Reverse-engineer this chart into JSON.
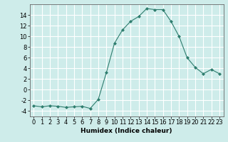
{
  "x": [
    0,
    1,
    2,
    3,
    4,
    5,
    6,
    7,
    8,
    9,
    10,
    11,
    12,
    13,
    14,
    15,
    16,
    17,
    18,
    19,
    20,
    21,
    22,
    23
  ],
  "y": [
    -3,
    -3.2,
    -3,
    -3.1,
    -3.3,
    -3.2,
    -3.1,
    -3.5,
    -1.8,
    3.2,
    8.7,
    11.2,
    12.8,
    13.7,
    15.2,
    15.0,
    15.0,
    12.8,
    10.0,
    6.0,
    4.2,
    3.0,
    3.8,
    3.0
  ],
  "line_color": "#2e7d6e",
  "marker": "D",
  "marker_size": 2,
  "xlabel": "Humidex (Indice chaleur)",
  "xlim": [
    -0.5,
    23.5
  ],
  "ylim": [
    -5,
    16
  ],
  "yticks": [
    -4,
    -2,
    0,
    2,
    4,
    6,
    8,
    10,
    12,
    14
  ],
  "xticks": [
    0,
    1,
    2,
    3,
    4,
    5,
    6,
    7,
    8,
    9,
    10,
    11,
    12,
    13,
    14,
    15,
    16,
    17,
    18,
    19,
    20,
    21,
    22,
    23
  ],
  "background_color": "#ceecea",
  "grid_color": "#ffffff",
  "label_fontsize": 6.5,
  "tick_fontsize": 6
}
